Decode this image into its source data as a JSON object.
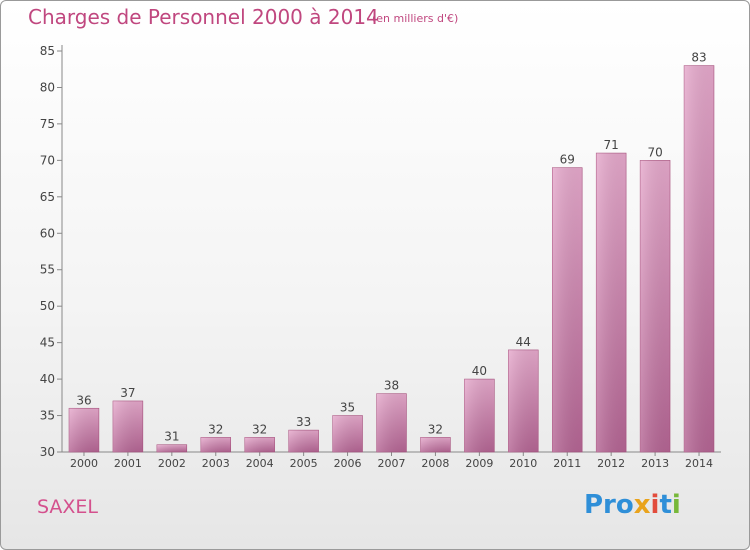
{
  "chart_data": {
    "type": "bar",
    "title": "Charges de Personnel 2000 à 2014",
    "subtitle": "(en milliers d'€)",
    "categories": [
      "2000",
      "2001",
      "2002",
      "2003",
      "2004",
      "2005",
      "2006",
      "2007",
      "2008",
      "2009",
      "2010",
      "2011",
      "2012",
      "2013",
      "2014"
    ],
    "values": [
      36,
      37,
      31,
      32,
      32,
      33,
      35,
      38,
      32,
      40,
      44,
      69,
      71,
      70,
      83
    ],
    "ylim": [
      30,
      85
    ],
    "yticks": [
      30,
      35,
      40,
      45,
      50,
      55,
      60,
      65,
      70,
      75,
      80,
      85
    ],
    "grid": false,
    "bar_color": "#c96b9f"
  },
  "footer": {
    "commune": "SAXEL",
    "logo": [
      "Pro",
      "x",
      "i",
      "t",
      "i"
    ]
  }
}
